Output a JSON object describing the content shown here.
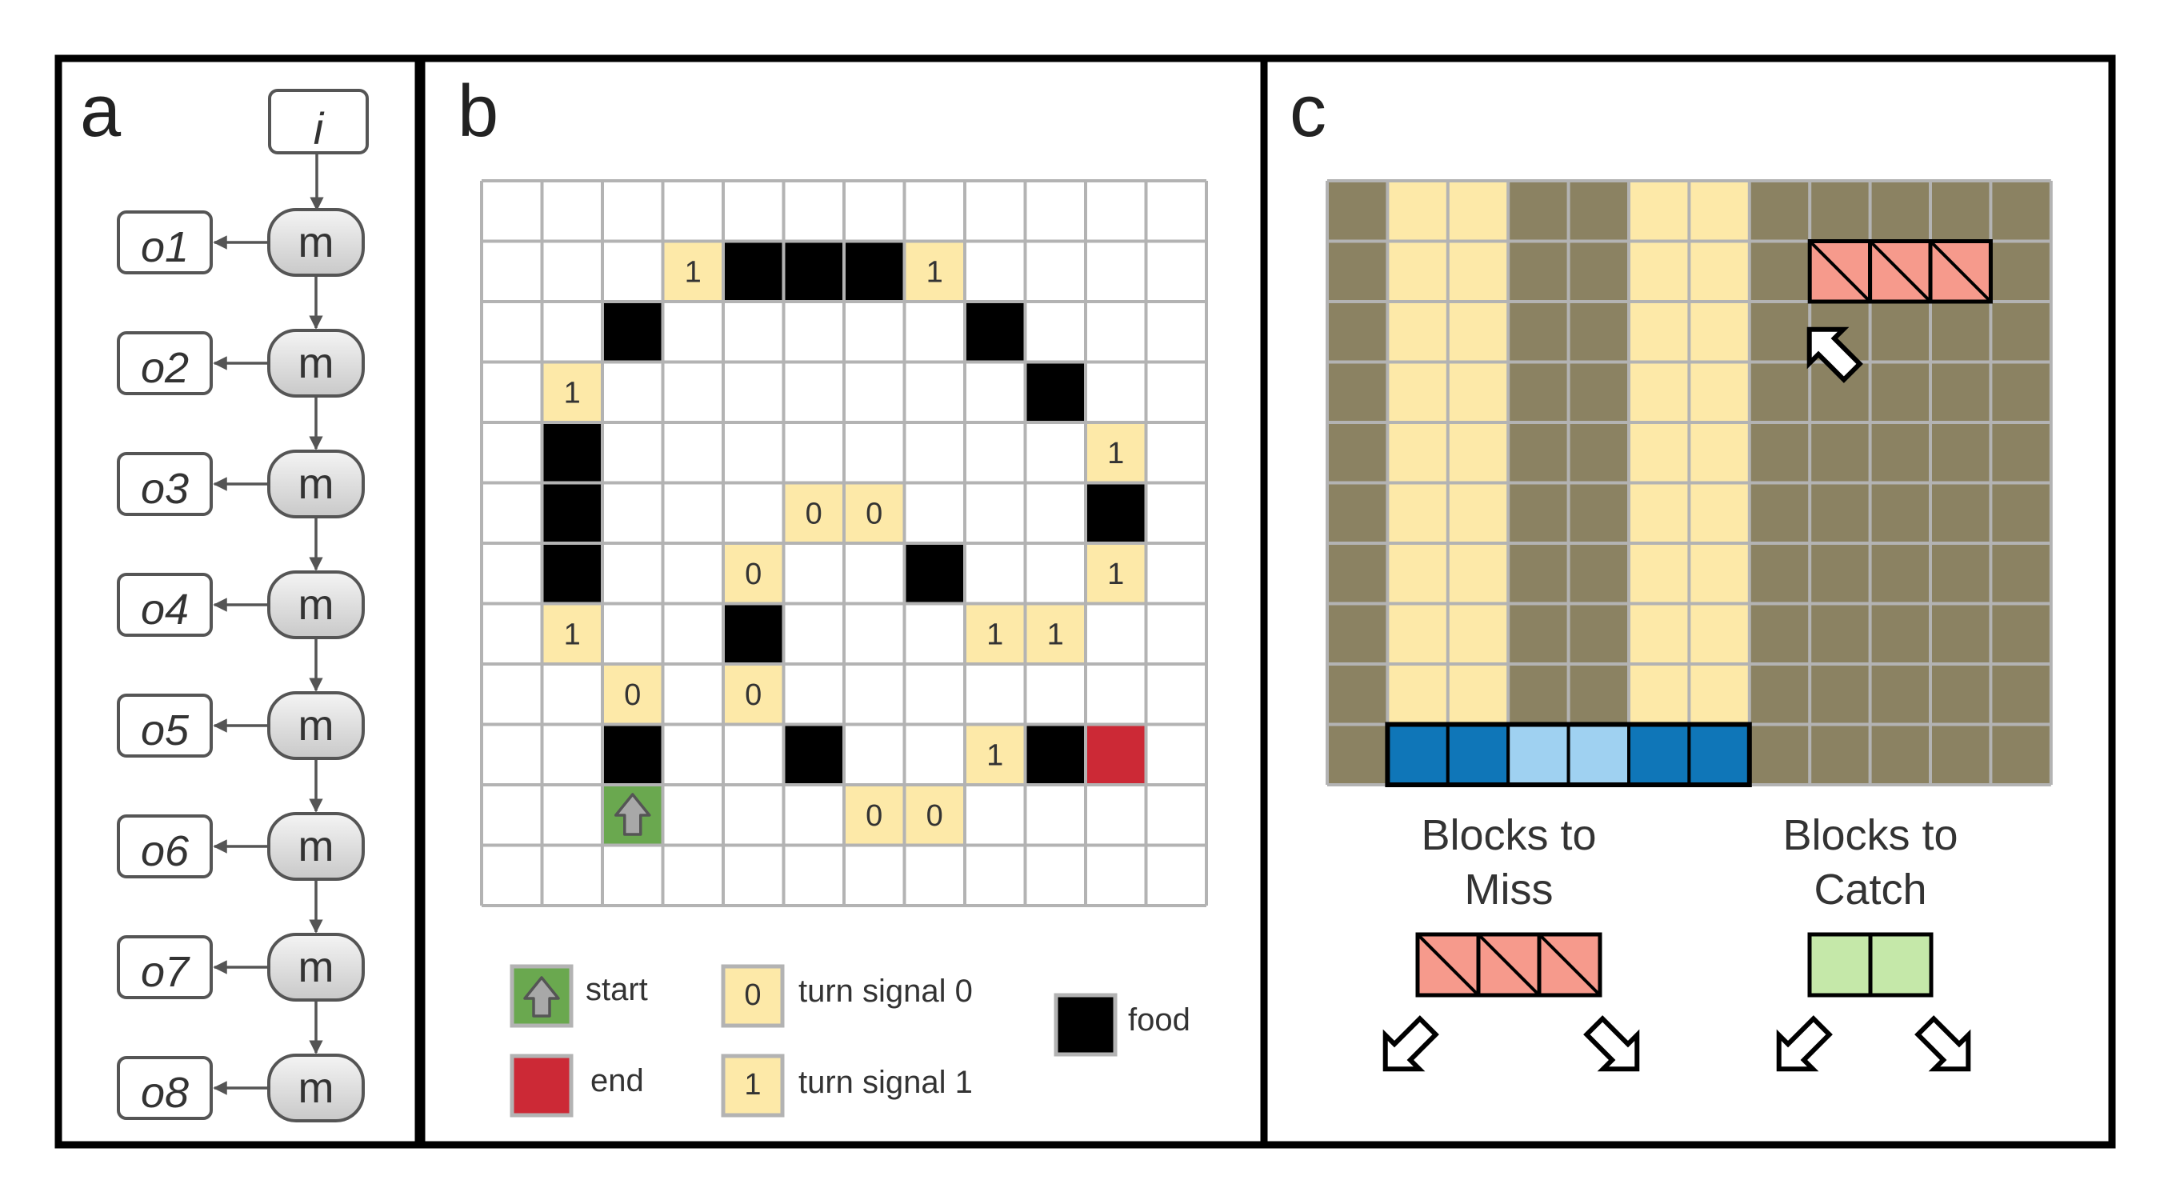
{
  "panel_a": {
    "label": "a",
    "input_label": "i",
    "memory_label": "m",
    "outputs": [
      "o1",
      "o2",
      "o3",
      "o4",
      "o5",
      "o6",
      "o7",
      "o8"
    ]
  },
  "panel_b": {
    "label": "b",
    "grid_size": 12,
    "food": [
      [
        1,
        4
      ],
      [
        1,
        5
      ],
      [
        1,
        6
      ],
      [
        2,
        2
      ],
      [
        2,
        8
      ],
      [
        3,
        9
      ],
      [
        4,
        1
      ],
      [
        5,
        1
      ],
      [
        5,
        10
      ],
      [
        6,
        1
      ],
      [
        6,
        7
      ],
      [
        7,
        4
      ],
      [
        9,
        2
      ],
      [
        9,
        5
      ],
      [
        9,
        9
      ]
    ],
    "signals": [
      {
        "r": 1,
        "c": 3,
        "v": "1"
      },
      {
        "r": 1,
        "c": 7,
        "v": "1"
      },
      {
        "r": 3,
        "c": 1,
        "v": "1"
      },
      {
        "r": 4,
        "c": 10,
        "v": "1"
      },
      {
        "r": 5,
        "c": 5,
        "v": "0"
      },
      {
        "r": 5,
        "c": 6,
        "v": "0"
      },
      {
        "r": 6,
        "c": 4,
        "v": "0"
      },
      {
        "r": 6,
        "c": 10,
        "v": "1"
      },
      {
        "r": 7,
        "c": 1,
        "v": "1"
      },
      {
        "r": 7,
        "c": 8,
        "v": "1"
      },
      {
        "r": 7,
        "c": 9,
        "v": "1"
      },
      {
        "r": 8,
        "c": 2,
        "v": "0"
      },
      {
        "r": 8,
        "c": 4,
        "v": "0"
      },
      {
        "r": 9,
        "c": 8,
        "v": "1"
      },
      {
        "r": 10,
        "c": 6,
        "v": "0"
      },
      {
        "r": 10,
        "c": 7,
        "v": "0"
      }
    ],
    "start": {
      "r": 10,
      "c": 2
    },
    "end": {
      "r": 9,
      "c": 10
    },
    "legend": {
      "start": "start",
      "end": "end",
      "signal0_value": "0",
      "signal0": "turn signal 0",
      "signal1_value": "1",
      "signal1": "turn signal 1",
      "food": "food"
    },
    "colors": {
      "food": "#000000",
      "signal": "#fde9a8",
      "start": "#6aa84f",
      "end": "#cc2936",
      "grid": "#b3b3b3"
    }
  },
  "panel_c": {
    "label": "c",
    "cols": 12,
    "rows": 10,
    "light_columns": [
      1,
      2,
      5,
      6
    ],
    "falling_block": {
      "row": 1,
      "cols": [
        8,
        9,
        10
      ]
    },
    "paddle": {
      "row": 9,
      "cols": [
        1,
        2,
        3,
        4,
        5,
        6
      ],
      "light": [
        3,
        4
      ]
    },
    "miss_title_line1": "Blocks to",
    "miss_title_line2": "Miss",
    "catch_title_line1": "Blocks to",
    "catch_title_line2": "Catch",
    "colors": {
      "dark": "#8b8262",
      "light": "#fde9a8",
      "block_miss": "#f69a8c",
      "block_catch": "#c5e8a9",
      "paddle_dark": "#0f76b8",
      "paddle_light": "#9fd1f1"
    }
  }
}
